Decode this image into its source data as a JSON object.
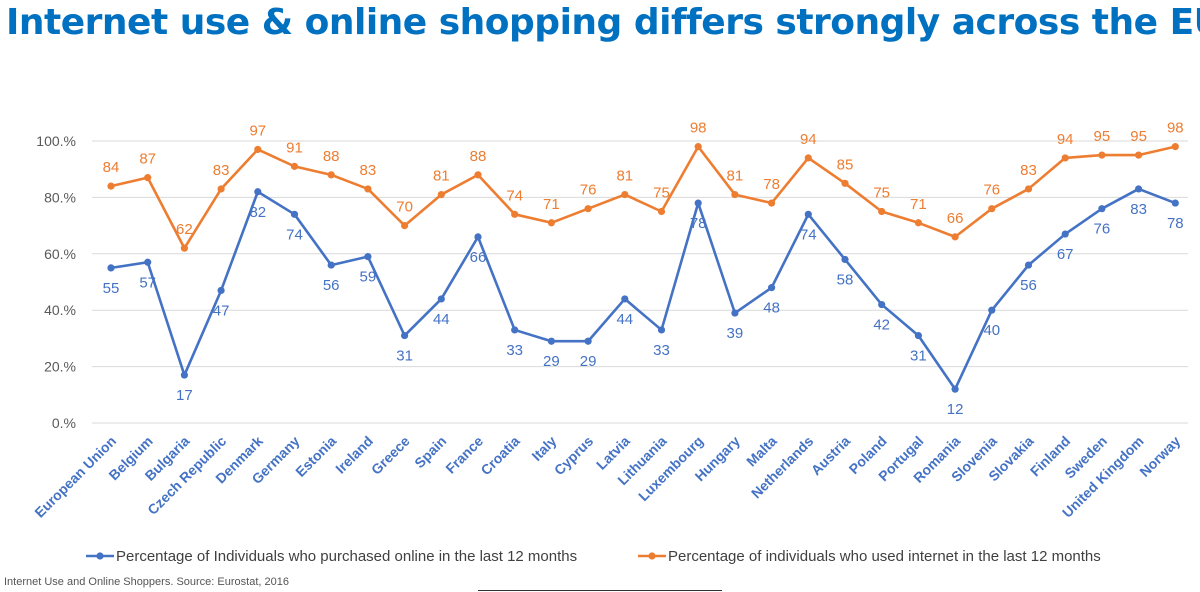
{
  "title": "Internet use & online shopping differs strongly across the EU",
  "source": "Internet Use and Online Shoppers. Source: Eurostat, 2016",
  "colors": {
    "title": "#0070C0",
    "purchased": "#4472C4",
    "internet": "#ED7D31",
    "category_labels": "#4472C4",
    "gridline": "#D9D9D9"
  },
  "chart_data": {
    "type": "line",
    "title": "",
    "xlabel": "",
    "ylabel": "",
    "ylim": [
      0,
      100
    ],
    "yticks": [
      "0.%",
      "20.%",
      "40.%",
      "60.%",
      "80.%",
      "100.%"
    ],
    "categories": [
      "European Union",
      "Belgium",
      "Bulgaria",
      "Czech Republic",
      "Denmark",
      "Germany",
      "Estonia",
      "Ireland",
      "Greece",
      "Spain",
      "France",
      "Croatia",
      "Italy",
      "Cyprus",
      "Latvia",
      "Lithuania",
      "Luxembourg",
      "Hungary",
      "Malta",
      "Netherlands",
      "Austria",
      "Poland",
      "Portugal",
      "Romania",
      "Slovenia",
      "Slovakia",
      "Finland",
      "Sweden",
      "United Kingdom",
      "Norway"
    ],
    "legend_position": "bottom",
    "series": [
      {
        "name": "Percentage of Individuals who purchased online in the last 12 months",
        "color": "#4472C4",
        "label_position": "below",
        "values": [
          55,
          57,
          17,
          47,
          82,
          74,
          56,
          59,
          31,
          44,
          66,
          33,
          29,
          29,
          44,
          33,
          78,
          39,
          48,
          74,
          58,
          42,
          31,
          12,
          40,
          56,
          67,
          76,
          83,
          78
        ]
      },
      {
        "name": "Percentage of individuals who used internet in the last 12 months",
        "color": "#ED7D31",
        "label_position": "above",
        "values": [
          84,
          87,
          62,
          83,
          97,
          91,
          88,
          83,
          70,
          81,
          88,
          74,
          71,
          76,
          81,
          75,
          98,
          81,
          78,
          94,
          85,
          75,
          71,
          66,
          76,
          83,
          94,
          95,
          95,
          98
        ]
      }
    ]
  }
}
